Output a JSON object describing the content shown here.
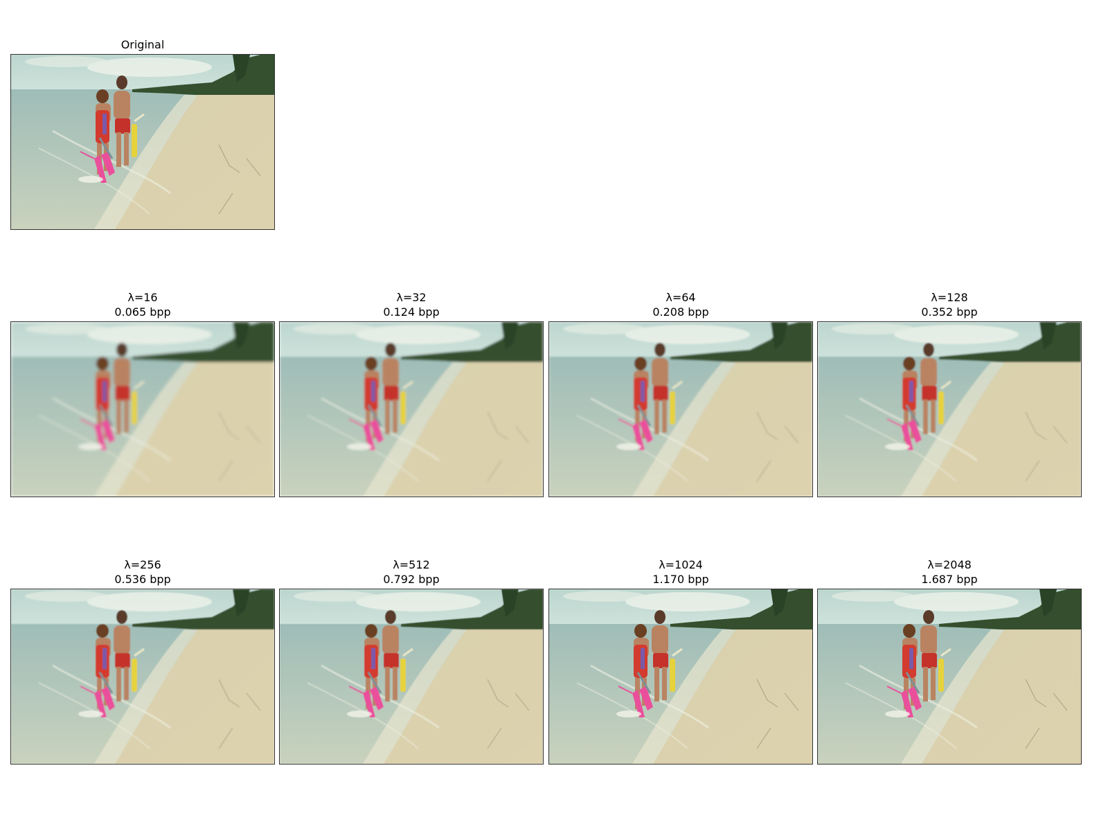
{
  "figure": {
    "original": {
      "title": "Original"
    },
    "panels": [
      {
        "lambda": "λ=16",
        "bpp": "0.065 bpp",
        "blur": 2.2
      },
      {
        "lambda": "λ=32",
        "bpp": "0.124 bpp",
        "blur": 1.7
      },
      {
        "lambda": "λ=64",
        "bpp": "0.208 bpp",
        "blur": 1.3
      },
      {
        "lambda": "λ=128",
        "bpp": "0.352 bpp",
        "blur": 1.0
      },
      {
        "lambda": "λ=256",
        "bpp": "0.536 bpp",
        "blur": 0.7
      },
      {
        "lambda": "λ=512",
        "bpp": "0.792 bpp",
        "blur": 0.5
      },
      {
        "lambda": "λ=1024",
        "bpp": "1.170 bpp",
        "blur": 0.3
      },
      {
        "lambda": "λ=2048",
        "bpp": "1.687 bpp",
        "blur": 0.1
      }
    ]
  },
  "colors": {
    "sky": "#cfe3dc",
    "sea": "#9fbdb8",
    "sand": "#ddd2ae",
    "trees": "#34502f",
    "swimsuit": "#d23a2e",
    "trunks": "#c4302a",
    "fins_pink": "#ea4f9c",
    "fins_yellow": "#e6d23a",
    "skin": "#b98362",
    "frame_border": "#333333"
  }
}
